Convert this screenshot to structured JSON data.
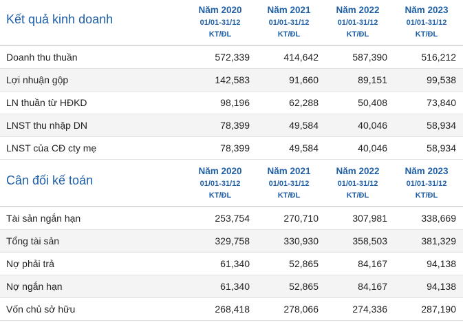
{
  "business": {
    "title": "Kết quả kinh doanh",
    "columns": [
      {
        "year": "Năm 2020",
        "range": "01/01-31/12",
        "unit": "KT/ĐL"
      },
      {
        "year": "Năm 2021",
        "range": "01/01-31/12",
        "unit": "KT/ĐL"
      },
      {
        "year": "Năm 2022",
        "range": "01/01-31/12",
        "unit": "KT/ĐL"
      },
      {
        "year": "Năm 2023",
        "range": "01/01-31/12",
        "unit": "KT/ĐL"
      }
    ],
    "rows": [
      {
        "label": "Doanh thu thuần",
        "values": [
          "572,339",
          "414,642",
          "587,390",
          "516,212"
        ]
      },
      {
        "label": "Lợi nhuận gộp",
        "values": [
          "142,583",
          "91,660",
          "89,151",
          "99,538"
        ]
      },
      {
        "label": "LN thuần từ HĐKD",
        "values": [
          "98,196",
          "62,288",
          "50,408",
          "73,840"
        ]
      },
      {
        "label": "LNST thu nhập DN",
        "values": [
          "78,399",
          "49,584",
          "40,046",
          "58,934"
        ]
      },
      {
        "label": "LNST của CĐ cty mẹ",
        "values": [
          "78,399",
          "49,584",
          "40,046",
          "58,934"
        ]
      }
    ]
  },
  "balance": {
    "title": "Cân đối kế toán",
    "columns": [
      {
        "year": "Năm 2020",
        "range": "01/01-31/12",
        "unit": "KT/ĐL"
      },
      {
        "year": "Năm 2021",
        "range": "01/01-31/12",
        "unit": "KT/ĐL"
      },
      {
        "year": "Năm 2022",
        "range": "01/01-31/12",
        "unit": "KT/ĐL"
      },
      {
        "year": "Năm 2023",
        "range": "01/01-31/12",
        "unit": "KT/ĐL"
      }
    ],
    "rows": [
      {
        "label": "Tài sản ngắn hạn",
        "values": [
          "253,754",
          "270,710",
          "307,981",
          "338,669"
        ]
      },
      {
        "label": "Tổng tài sản",
        "values": [
          "329,758",
          "330,930",
          "358,503",
          "381,329"
        ]
      },
      {
        "label": "Nợ phải trả",
        "values": [
          "61,340",
          "52,865",
          "84,167",
          "94,138"
        ]
      },
      {
        "label": "Nợ ngắn hạn",
        "values": [
          "61,340",
          "52,865",
          "84,167",
          "94,138"
        ]
      },
      {
        "label": "Vốn chủ sở hữu",
        "values": [
          "268,418",
          "278,066",
          "274,336",
          "287,190"
        ]
      }
    ]
  }
}
